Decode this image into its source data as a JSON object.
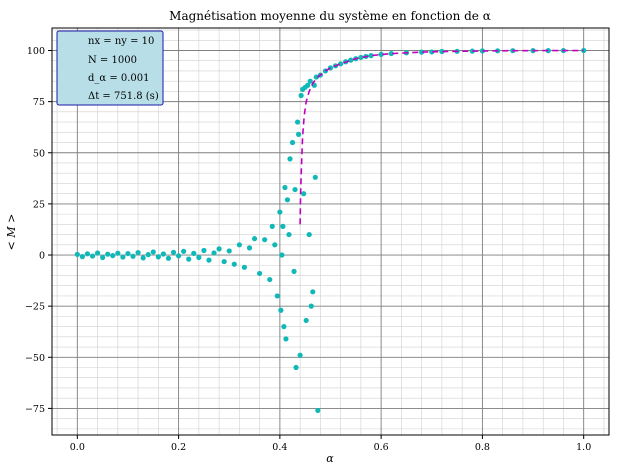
{
  "chart_data": {
    "type": "scatter",
    "title": "Magnétisation moyenne du système en fonction de α",
    "xlabel": "α",
    "ylabel": "< M >",
    "xlim": [
      -0.05,
      1.05
    ],
    "ylim": [
      -88,
      111
    ],
    "xticks": [
      "0.0",
      "0.2",
      "0.4",
      "0.6",
      "0.8",
      "1.0"
    ],
    "xtick_values": [
      0.0,
      0.2,
      0.4,
      0.6,
      0.8,
      1.0
    ],
    "yticks": [
      "−75",
      "−50",
      "−25",
      "0",
      "25",
      "50",
      "75",
      "100"
    ],
    "ytick_values": [
      -75,
      -50,
      -25,
      0,
      25,
      50,
      75,
      100
    ],
    "grid": true,
    "legend_position": "top-left",
    "legend_lines": [
      "nx = ny = 10",
      "N = 1000",
      "d_α = 0.001",
      "Δt = 751.8 (s)"
    ],
    "colors": {
      "points": "#10b8b8",
      "fit": "#c000c0",
      "legend_bg": "#b8dfe8",
      "legend_border": "#1a1aa8",
      "grid_major": "#808080",
      "grid_minor": "#d0d0d0"
    },
    "series": [
      {
        "kind": "points",
        "points": [
          [
            0.0,
            0.3
          ],
          [
            0.01,
            -0.8
          ],
          [
            0.02,
            0.6
          ],
          [
            0.03,
            -0.5
          ],
          [
            0.04,
            1.0
          ],
          [
            0.05,
            -1.2
          ],
          [
            0.06,
            0.4
          ],
          [
            0.07,
            -0.3
          ],
          [
            0.08,
            0.9
          ],
          [
            0.09,
            -1.0
          ],
          [
            0.1,
            0.7
          ],
          [
            0.11,
            -0.6
          ],
          [
            0.12,
            1.2
          ],
          [
            0.13,
            -1.4
          ],
          [
            0.14,
            0.2
          ],
          [
            0.15,
            1.5
          ],
          [
            0.16,
            -0.9
          ],
          [
            0.17,
            0.5
          ],
          [
            0.18,
            -1.6
          ],
          [
            0.19,
            1.3
          ],
          [
            0.2,
            -0.4
          ],
          [
            0.21,
            1.8
          ],
          [
            0.22,
            -2.0
          ],
          [
            0.23,
            0.8
          ],
          [
            0.24,
            -1.2
          ],
          [
            0.25,
            2.2
          ],
          [
            0.26,
            -2.5
          ],
          [
            0.27,
            1.0
          ],
          [
            0.28,
            3.0
          ],
          [
            0.29,
            -3.2
          ],
          [
            0.3,
            2.0
          ],
          [
            0.31,
            -4.5
          ],
          [
            0.32,
            5.0
          ],
          [
            0.33,
            -6.0
          ],
          [
            0.34,
            3.5
          ],
          [
            0.35,
            8.0
          ],
          [
            0.36,
            -9.0
          ],
          [
            0.37,
            7.5
          ],
          [
            0.38,
            -12
          ],
          [
            0.385,
            14
          ],
          [
            0.39,
            5
          ],
          [
            0.395,
            -20
          ],
          [
            0.4,
            21
          ],
          [
            0.402,
            -27
          ],
          [
            0.404,
            0
          ],
          [
            0.406,
            14
          ],
          [
            0.408,
            -35
          ],
          [
            0.41,
            33
          ],
          [
            0.412,
            -41
          ],
          [
            0.415,
            27
          ],
          [
            0.418,
            10
          ],
          [
            0.42,
            47
          ],
          [
            0.425,
            55
          ],
          [
            0.428,
            -8
          ],
          [
            0.43,
            32
          ],
          [
            0.432,
            -55
          ],
          [
            0.435,
            65
          ],
          [
            0.437,
            59
          ],
          [
            0.44,
            -49
          ],
          [
            0.442,
            78
          ],
          [
            0.445,
            81
          ],
          [
            0.447,
            30
          ],
          [
            0.45,
            82
          ],
          [
            0.452,
            -32
          ],
          [
            0.455,
            83
          ],
          [
            0.458,
            10
          ],
          [
            0.46,
            85
          ],
          [
            0.462,
            -25
          ],
          [
            0.465,
            -18
          ],
          [
            0.468,
            83
          ],
          [
            0.47,
            38
          ],
          [
            0.472,
            87
          ],
          [
            0.475,
            -76
          ],
          [
            0.48,
            88
          ],
          [
            0.49,
            90
          ],
          [
            0.5,
            91.5
          ],
          [
            0.51,
            92.5
          ],
          [
            0.52,
            93.5
          ],
          [
            0.53,
            94.5
          ],
          [
            0.54,
            95.3
          ],
          [
            0.55,
            96
          ],
          [
            0.56,
            96.6
          ],
          [
            0.57,
            97.1
          ],
          [
            0.58,
            97.5
          ],
          [
            0.6,
            98.1
          ],
          [
            0.62,
            98.5
          ],
          [
            0.65,
            98.9
          ],
          [
            0.68,
            99.2
          ],
          [
            0.7,
            99.3
          ],
          [
            0.72,
            99.5
          ],
          [
            0.75,
            99.6
          ],
          [
            0.78,
            99.7
          ],
          [
            0.8,
            99.8
          ],
          [
            0.83,
            99.85
          ],
          [
            0.86,
            99.9
          ],
          [
            0.9,
            99.93
          ],
          [
            0.93,
            99.95
          ],
          [
            0.96,
            99.97
          ],
          [
            1.0,
            100
          ]
        ]
      },
      {
        "kind": "fit",
        "style": "dashed",
        "points": [
          [
            0.44,
            15
          ],
          [
            0.441,
            30
          ],
          [
            0.443,
            45
          ],
          [
            0.445,
            58
          ],
          [
            0.448,
            68
          ],
          [
            0.452,
            75
          ],
          [
            0.458,
            80
          ],
          [
            0.465,
            84
          ],
          [
            0.475,
            87
          ],
          [
            0.49,
            90
          ],
          [
            0.5,
            91.5
          ],
          [
            0.52,
            93.5
          ],
          [
            0.55,
            96
          ],
          [
            0.58,
            97.5
          ],
          [
            0.62,
            98.5
          ],
          [
            0.68,
            99.2
          ],
          [
            0.75,
            99.6
          ],
          [
            0.85,
            99.9
          ],
          [
            1.0,
            100
          ]
        ]
      }
    ]
  }
}
